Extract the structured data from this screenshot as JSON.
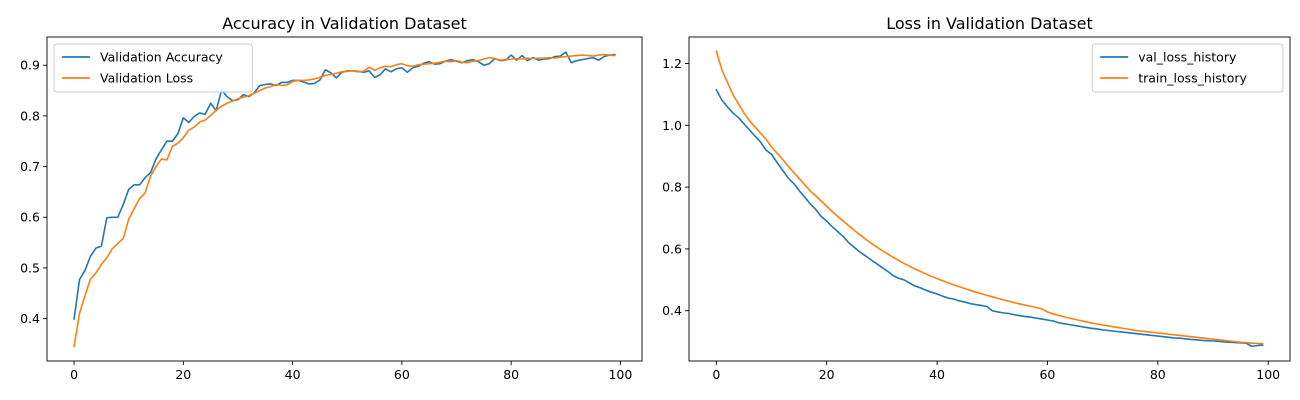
{
  "chart_data": [
    {
      "type": "line",
      "title": "Accuracy in Validation Dataset",
      "xlabel": "",
      "ylabel": "",
      "xlim": [
        -4.95,
        103.95
      ],
      "ylim": [
        0.3163,
        0.9557
      ],
      "xticks": [
        0,
        20,
        40,
        60,
        80,
        100
      ],
      "yticks": [
        0.4,
        0.5,
        0.6,
        0.7,
        0.8,
        0.9
      ],
      "xtick_labels": [
        "0",
        "20",
        "40",
        "60",
        "80",
        "100"
      ],
      "ytick_labels": [
        "0.4",
        "0.5",
        "0.6",
        "0.7",
        "0.8",
        "0.9"
      ],
      "legend_position": "upper-left",
      "grid": false,
      "series": [
        {
          "name": "Validation Accuracy",
          "color": "#1f77b4",
          "x": [
            0,
            1,
            2,
            3,
            4,
            5,
            6,
            7,
            8,
            9,
            10,
            11,
            12,
            13,
            14,
            15,
            16,
            17,
            18,
            19,
            20,
            21,
            22,
            23,
            24,
            25,
            26,
            27,
            28,
            29,
            30,
            31,
            32,
            33,
            34,
            35,
            36,
            37,
            38,
            39,
            40,
            41,
            42,
            43,
            44,
            45,
            46,
            47,
            48,
            49,
            50,
            51,
            52,
            53,
            54,
            55,
            56,
            57,
            58,
            59,
            60,
            61,
            62,
            63,
            64,
            65,
            66,
            67,
            68,
            69,
            70,
            71,
            72,
            73,
            74,
            75,
            76,
            77,
            78,
            79,
            80,
            81,
            82,
            83,
            84,
            85,
            86,
            87,
            88,
            89,
            90,
            91,
            92,
            93,
            94,
            95,
            96,
            97,
            98,
            99
          ],
          "values": [
            0.399,
            0.477,
            0.495,
            0.523,
            0.539,
            0.543,
            0.599,
            0.6,
            0.6,
            0.625,
            0.655,
            0.664,
            0.664,
            0.678,
            0.688,
            0.715,
            0.733,
            0.75,
            0.75,
            0.765,
            0.796,
            0.787,
            0.799,
            0.806,
            0.803,
            0.825,
            0.81,
            0.851,
            0.838,
            0.83,
            0.832,
            0.842,
            0.838,
            0.846,
            0.86,
            0.862,
            0.863,
            0.86,
            0.866,
            0.866,
            0.87,
            0.87,
            0.867,
            0.863,
            0.864,
            0.871,
            0.891,
            0.885,
            0.875,
            0.886,
            0.889,
            0.889,
            0.888,
            0.886,
            0.889,
            0.876,
            0.881,
            0.893,
            0.887,
            0.893,
            0.895,
            0.886,
            0.895,
            0.898,
            0.904,
            0.907,
            0.902,
            0.903,
            0.908,
            0.911,
            0.908,
            0.905,
            0.909,
            0.911,
            0.907,
            0.9,
            0.903,
            0.913,
            0.909,
            0.91,
            0.92,
            0.91,
            0.919,
            0.909,
            0.915,
            0.91,
            0.912,
            0.913,
            0.917,
            0.918,
            0.926,
            0.905,
            0.909,
            0.911,
            0.913,
            0.915,
            0.91,
            0.917,
            0.92,
            0.921
          ]
        },
        {
          "name": "Validation Loss",
          "color": "#ff7f0e",
          "x": [
            0,
            1,
            2,
            3,
            4,
            5,
            6,
            7,
            8,
            9,
            10,
            11,
            12,
            13,
            14,
            15,
            16,
            17,
            18,
            19,
            20,
            21,
            22,
            23,
            24,
            25,
            26,
            27,
            28,
            29,
            30,
            31,
            32,
            33,
            34,
            35,
            36,
            37,
            38,
            39,
            40,
            41,
            42,
            43,
            44,
            45,
            46,
            47,
            48,
            49,
            50,
            51,
            52,
            53,
            54,
            55,
            56,
            57,
            58,
            59,
            60,
            61,
            62,
            63,
            64,
            65,
            66,
            67,
            68,
            69,
            70,
            71,
            72,
            73,
            74,
            75,
            76,
            77,
            78,
            79,
            80,
            81,
            82,
            83,
            84,
            85,
            86,
            87,
            88,
            89,
            90,
            91,
            92,
            93,
            94,
            95,
            96,
            97,
            98,
            99
          ],
          "values": [
            0.345,
            0.41,
            0.445,
            0.478,
            0.49,
            0.507,
            0.52,
            0.538,
            0.548,
            0.558,
            0.596,
            0.617,
            0.637,
            0.648,
            0.681,
            0.7,
            0.715,
            0.713,
            0.74,
            0.746,
            0.757,
            0.772,
            0.778,
            0.788,
            0.792,
            0.801,
            0.811,
            0.819,
            0.825,
            0.829,
            0.834,
            0.837,
            0.84,
            0.845,
            0.85,
            0.855,
            0.858,
            0.862,
            0.86,
            0.861,
            0.868,
            0.87,
            0.87,
            0.871,
            0.873,
            0.876,
            0.88,
            0.882,
            0.884,
            0.887,
            0.888,
            0.889,
            0.887,
            0.888,
            0.896,
            0.89,
            0.895,
            0.898,
            0.897,
            0.901,
            0.903,
            0.899,
            0.898,
            0.901,
            0.902,
            0.903,
            0.904,
            0.906,
            0.908,
            0.907,
            0.909,
            0.906,
            0.905,
            0.908,
            0.909,
            0.912,
            0.915,
            0.913,
            0.91,
            0.911,
            0.912,
            0.913,
            0.912,
            0.914,
            0.913,
            0.914,
            0.914,
            0.915,
            0.914,
            0.916,
            0.917,
            0.918,
            0.919,
            0.92,
            0.919,
            0.918,
            0.92,
            0.921,
            0.92,
            0.919
          ]
        }
      ]
    },
    {
      "type": "line",
      "title": "Loss in Validation Dataset",
      "xlabel": "",
      "ylabel": "",
      "xlim": [
        -4.95,
        103.95
      ],
      "ylim": [
        0.2373,
        1.2857
      ],
      "xticks": [
        0,
        20,
        40,
        60,
        80,
        100
      ],
      "yticks": [
        0.4,
        0.6,
        0.8,
        1.0,
        1.2
      ],
      "xtick_labels": [
        "0",
        "20",
        "40",
        "60",
        "80",
        "100"
      ],
      "ytick_labels": [
        "0.4",
        "0.6",
        "0.8",
        "1.0",
        "1.2"
      ],
      "legend_position": "upper-right",
      "grid": false,
      "series": [
        {
          "name": "val_loss_history",
          "color": "#1f77b4",
          "x": [
            0,
            1,
            2,
            3,
            4,
            5,
            6,
            7,
            8,
            9,
            10,
            11,
            12,
            13,
            14,
            15,
            16,
            17,
            18,
            19,
            20,
            21,
            22,
            23,
            24,
            25,
            26,
            27,
            28,
            29,
            30,
            31,
            32,
            33,
            34,
            35,
            36,
            37,
            38,
            39,
            40,
            41,
            42,
            43,
            44,
            45,
            46,
            47,
            48,
            49,
            50,
            51,
            52,
            53,
            54,
            55,
            56,
            57,
            58,
            59,
            60,
            61,
            62,
            63,
            64,
            65,
            66,
            67,
            68,
            69,
            70,
            71,
            72,
            73,
            74,
            75,
            76,
            77,
            78,
            79,
            80,
            81,
            82,
            83,
            84,
            85,
            86,
            87,
            88,
            89,
            90,
            91,
            92,
            93,
            94,
            95,
            96,
            97,
            98,
            99
          ],
          "values": [
            1.115,
            1.082,
            1.06,
            1.04,
            1.025,
            1.005,
            0.985,
            0.965,
            0.946,
            0.92,
            0.906,
            0.88,
            0.855,
            0.83,
            0.812,
            0.789,
            0.768,
            0.746,
            0.728,
            0.705,
            0.69,
            0.672,
            0.656,
            0.64,
            0.62,
            0.605,
            0.59,
            0.578,
            0.565,
            0.553,
            0.54,
            0.528,
            0.514,
            0.505,
            0.5,
            0.49,
            0.48,
            0.474,
            0.466,
            0.46,
            0.454,
            0.447,
            0.441,
            0.438,
            0.432,
            0.428,
            0.423,
            0.42,
            0.417,
            0.414,
            0.4,
            0.396,
            0.393,
            0.391,
            0.387,
            0.384,
            0.381,
            0.379,
            0.376,
            0.373,
            0.37,
            0.367,
            0.361,
            0.358,
            0.355,
            0.352,
            0.349,
            0.346,
            0.343,
            0.341,
            0.338,
            0.336,
            0.334,
            0.332,
            0.33,
            0.328,
            0.326,
            0.324,
            0.322,
            0.32,
            0.318,
            0.316,
            0.314,
            0.312,
            0.311,
            0.309,
            0.307,
            0.306,
            0.304,
            0.303,
            0.302,
            0.301,
            0.299,
            0.298,
            0.297,
            0.296,
            0.295,
            0.285,
            0.287,
            0.289
          ]
        },
        {
          "name": "train_loss_history",
          "color": "#ff7f0e",
          "x": [
            0,
            1,
            2,
            3,
            4,
            5,
            6,
            7,
            8,
            9,
            10,
            11,
            12,
            13,
            14,
            15,
            16,
            17,
            18,
            19,
            20,
            21,
            22,
            23,
            24,
            25,
            26,
            27,
            28,
            29,
            30,
            31,
            32,
            33,
            34,
            35,
            36,
            37,
            38,
            39,
            40,
            41,
            42,
            43,
            44,
            45,
            46,
            47,
            48,
            49,
            50,
            51,
            52,
            53,
            54,
            55,
            56,
            57,
            58,
            59,
            60,
            61,
            62,
            63,
            64,
            65,
            66,
            67,
            68,
            69,
            70,
            71,
            72,
            73,
            74,
            75,
            76,
            77,
            78,
            79,
            80,
            81,
            82,
            83,
            84,
            85,
            86,
            87,
            88,
            89,
            90,
            91,
            92,
            93,
            94,
            95,
            96,
            97,
            98,
            99
          ],
          "values": [
            1.24,
            1.18,
            1.14,
            1.1,
            1.07,
            1.04,
            1.015,
            0.995,
            0.975,
            0.955,
            0.93,
            0.91,
            0.89,
            0.868,
            0.848,
            0.828,
            0.808,
            0.788,
            0.772,
            0.755,
            0.738,
            0.721,
            0.705,
            0.69,
            0.675,
            0.66,
            0.646,
            0.632,
            0.619,
            0.607,
            0.595,
            0.584,
            0.573,
            0.563,
            0.553,
            0.544,
            0.535,
            0.527,
            0.519,
            0.511,
            0.504,
            0.497,
            0.49,
            0.484,
            0.478,
            0.472,
            0.466,
            0.46,
            0.455,
            0.45,
            0.445,
            0.44,
            0.435,
            0.431,
            0.426,
            0.422,
            0.418,
            0.414,
            0.41,
            0.406,
            0.396,
            0.39,
            0.385,
            0.38,
            0.376,
            0.372,
            0.368,
            0.364,
            0.36,
            0.357,
            0.354,
            0.351,
            0.348,
            0.345,
            0.342,
            0.339,
            0.336,
            0.334,
            0.332,
            0.33,
            0.328,
            0.326,
            0.324,
            0.322,
            0.32,
            0.318,
            0.316,
            0.314,
            0.312,
            0.31,
            0.308,
            0.306,
            0.304,
            0.302,
            0.3,
            0.298,
            0.297,
            0.295,
            0.294,
            0.293
          ]
        }
      ]
    }
  ]
}
